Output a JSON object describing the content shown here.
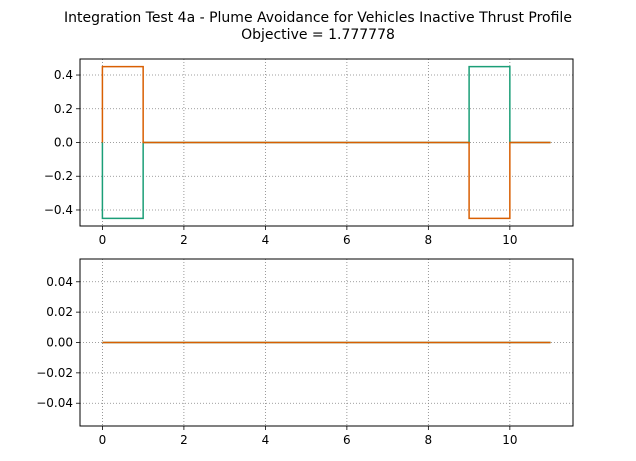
{
  "figure": {
    "title_line1": "Integration Test 4a - Plume Avoidance for Vehicles Inactive Thrust Profile",
    "title_line2": "Objective = 1.777778"
  },
  "chart_data": [
    {
      "type": "line",
      "step": true,
      "xlim": [
        -0.55,
        11.55
      ],
      "ylim": [
        -0.495,
        0.495
      ],
      "xticks": [
        0,
        2,
        4,
        6,
        8,
        10
      ],
      "xtick_labels": [
        "0",
        "2",
        "4",
        "6",
        "8",
        "10"
      ],
      "yticks": [
        -0.4,
        -0.2,
        0.0,
        0.2,
        0.4
      ],
      "ytick_labels": [
        "−0.4",
        "−0.2",
        "0.0",
        "0.2",
        "0.4"
      ],
      "grid": true,
      "series": [
        {
          "color": "#1b9e77",
          "x": [
            0,
            0,
            1,
            1,
            9,
            9,
            10,
            10,
            11
          ],
          "y": [
            0,
            -0.45,
            -0.45,
            0,
            0,
            0.45,
            0.45,
            0,
            0
          ]
        },
        {
          "color": "#d95f02",
          "x": [
            0,
            0,
            1,
            1,
            9,
            9,
            10,
            10,
            11
          ],
          "y": [
            0,
            0.45,
            0.45,
            0,
            0,
            -0.45,
            -0.45,
            0,
            0
          ]
        }
      ]
    },
    {
      "type": "line",
      "step": true,
      "xlim": [
        -0.55,
        11.55
      ],
      "ylim": [
        -0.055,
        0.055
      ],
      "xticks": [
        0,
        2,
        4,
        6,
        8,
        10
      ],
      "xtick_labels": [
        "0",
        "2",
        "4",
        "6",
        "8",
        "10"
      ],
      "yticks": [
        -0.04,
        -0.02,
        0.0,
        0.02,
        0.04
      ],
      "ytick_labels": [
        "−0.04",
        "−0.02",
        "0.00",
        "0.02",
        "0.04"
      ],
      "grid": true,
      "series": [
        {
          "color": "#1b9e77",
          "x": [
            0,
            11
          ],
          "y": [
            0,
            0
          ]
        },
        {
          "color": "#d95f02",
          "x": [
            0,
            11
          ],
          "y": [
            0,
            0
          ]
        }
      ]
    }
  ]
}
